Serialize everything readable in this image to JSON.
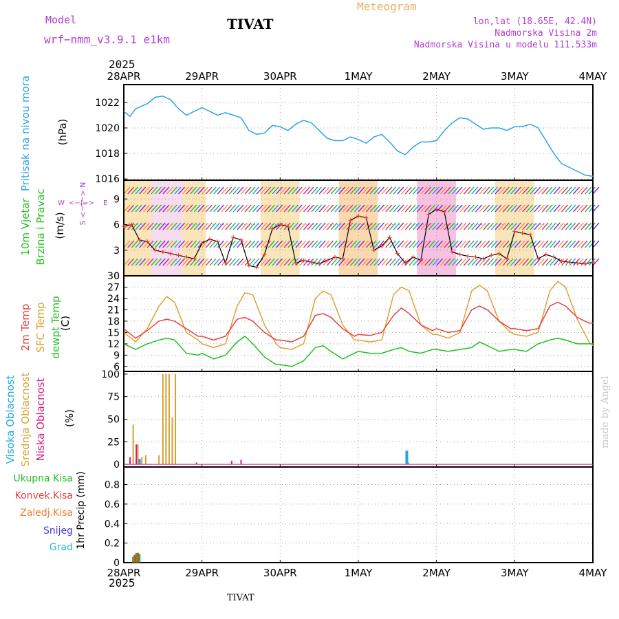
{
  "header": {
    "model_label": "Model",
    "model_name": "wrf−nmm_v3.9.1 e1km",
    "station": "TIVAT",
    "app_title": "Meteogram",
    "coords": "lon,lat (18.65E, 42.4N)",
    "elevation": "Nadmorska Visina 2m",
    "model_elevation": "Nadmorska Visina u modelu 111.533m",
    "watermark": "made by Angel",
    "footer_station": "TIVAT"
  },
  "colors": {
    "pressure": "#29a3e8",
    "wind_speed": "#000000",
    "wind_points": "#ff3030",
    "t2m": "#e84040",
    "sfc": "#e0a030",
    "dewpt": "#20c020",
    "high_cloud": "#20a8e0",
    "mid_cloud": "#d8a030",
    "low_cloud": "#d81880",
    "total_precip": "#20c020",
    "conv_precip": "#e84040",
    "frz_precip": "#f08030",
    "snow": "#4040e0",
    "hail": "#20c0c0",
    "label_purple": "#b040d0",
    "label_orange": "#e8b060"
  },
  "time_axis": {
    "year": "2025",
    "ticks": [
      "28APR",
      "29APR",
      "30APR",
      "1MAY",
      "2MAY",
      "3MAY",
      "4MAY"
    ]
  },
  "panels": [
    {
      "id": "pressure",
      "labels": [
        "Pritisak na nivou mora"
      ],
      "unit": "(hPa)",
      "ticks": [
        "1016",
        "1018",
        "1020",
        "1022"
      ]
    },
    {
      "id": "wind",
      "labels": [
        "10m Vjetar",
        "Brzina i Pravac"
      ],
      "unit": "(m/s)",
      "ticks": [
        "0",
        "3",
        "6",
        "9"
      ],
      "compass": {
        "n": "N",
        "s": "S",
        "e": "E",
        "w": "W",
        "arrow": "<−|−>"
      }
    },
    {
      "id": "temp",
      "labels": [
        "2m Temp",
        "SFC Temp",
        "dewpt Temp"
      ],
      "unit": "(C)",
      "ticks": [
        "6",
        "9",
        "12",
        "15",
        "18",
        "21",
        "24",
        "27",
        "30"
      ]
    },
    {
      "id": "cloud",
      "labels": [
        "Visoka Oblacnost",
        "Srednja Oblacnost",
        "Niska Oblacnost"
      ],
      "unit": "(%)",
      "ticks": [
        "0",
        "25",
        "50",
        "75",
        "100"
      ]
    },
    {
      "id": "precip",
      "labels": [
        "Ukupna Kisa",
        "Konvek.Kisa",
        "Zaledj.Kisa",
        "Snijeg",
        "Grad"
      ],
      "unit": "1hr Precip (mm)",
      "ticks": [
        "0",
        "0.2",
        "0.4",
        "0.6",
        "0.8"
      ]
    }
  ],
  "chart_data": [
    {
      "type": "line",
      "title": "Pritisak na nivou mora",
      "ylabel": "(hPa)",
      "x_unit": "days from 28APR 00UTC",
      "ylim": [
        1015.9,
        1023.4
      ],
      "grid": true,
      "series": [
        {
          "name": "Pritisak na nivou mora",
          "x": [
            0,
            0.08,
            0.15,
            0.3,
            0.4,
            0.5,
            0.6,
            0.7,
            0.8,
            0.9,
            1.0,
            1.1,
            1.2,
            1.3,
            1.4,
            1.5,
            1.6,
            1.7,
            1.8,
            1.9,
            2.0,
            2.1,
            2.2,
            2.3,
            2.4,
            2.5,
            2.6,
            2.7,
            2.8,
            2.9,
            3.0,
            3.1,
            3.2,
            3.3,
            3.4,
            3.5,
            3.6,
            3.7,
            3.8,
            3.9,
            4.0,
            4.1,
            4.2,
            4.3,
            4.4,
            4.5,
            4.6,
            4.7,
            4.8,
            4.9,
            5.0,
            5.1,
            5.2,
            5.3,
            5.4,
            5.5,
            5.6,
            5.7,
            5.8,
            5.9,
            6.0
          ],
          "y": [
            1021.3,
            1020.9,
            1021.5,
            1021.9,
            1022.4,
            1022.5,
            1022.2,
            1021.5,
            1021.0,
            1021.3,
            1021.6,
            1021.3,
            1021.0,
            1021.2,
            1021.0,
            1020.8,
            1019.8,
            1019.5,
            1019.6,
            1020.2,
            1020.1,
            1019.8,
            1020.3,
            1020.6,
            1020.4,
            1019.8,
            1019.2,
            1019.0,
            1019.0,
            1019.3,
            1019.1,
            1018.8,
            1019.3,
            1019.5,
            1018.9,
            1018.2,
            1017.9,
            1018.5,
            1018.9,
            1018.9,
            1019.0,
            1019.8,
            1020.4,
            1020.8,
            1020.7,
            1020.3,
            1019.9,
            1020.0,
            1020.0,
            1019.8,
            1020.1,
            1020.1,
            1020.3,
            1020.0,
            1019.0,
            1018.0,
            1017.2,
            1016.9,
            1016.6,
            1016.3,
            1016.2
          ]
        }
      ]
    },
    {
      "type": "line",
      "title": "10m Vjetar Brzina i Pravac",
      "ylabel": "(m/s)",
      "x_unit": "days from 28APR 00UTC",
      "ylim": [
        0,
        11.2
      ],
      "grid": true,
      "series": [
        {
          "name": "10m Vjetar",
          "x": [
            0,
            0.1,
            0.2,
            0.3,
            0.4,
            0.5,
            0.6,
            0.7,
            0.8,
            0.9,
            1.0,
            1.1,
            1.2,
            1.3,
            1.4,
            1.5,
            1.6,
            1.7,
            1.8,
            1.9,
            2.0,
            2.1,
            2.2,
            2.3,
            2.4,
            2.5,
            2.6,
            2.7,
            2.8,
            2.9,
            3.0,
            3.1,
            3.2,
            3.3,
            3.4,
            3.5,
            3.6,
            3.7,
            3.8,
            3.9,
            4.0,
            4.1,
            4.2,
            4.3,
            4.4,
            4.5,
            4.6,
            4.7,
            4.8,
            4.9,
            5.0,
            5.1,
            5.2,
            5.3,
            5.4,
            5.5,
            5.6,
            5.7,
            5.8,
            5.9,
            6.0
          ],
          "y": [
            5.8,
            6.0,
            4.2,
            4.0,
            3.0,
            2.8,
            2.6,
            2.4,
            2.2,
            2.0,
            3.8,
            4.3,
            4.0,
            1.5,
            4.5,
            4.2,
            1.2,
            1.0,
            2.5,
            5.5,
            6.0,
            5.8,
            1.5,
            1.8,
            1.6,
            1.4,
            1.8,
            2.2,
            2.0,
            6.5,
            7.0,
            6.8,
            3.0,
            3.5,
            4.5,
            2.6,
            1.5,
            2.2,
            1.8,
            7.2,
            7.8,
            7.5,
            2.8,
            2.5,
            2.3,
            2.2,
            2.0,
            2.4,
            2.6,
            2.0,
            5.2,
            5.0,
            4.8,
            2.0,
            2.5,
            2.2,
            1.7,
            1.6,
            1.5,
            1.4,
            1.6
          ]
        }
      ]
    },
    {
      "type": "line",
      "title": "2m Temp / SFC Temp / dewpt Temp",
      "ylabel": "(C)",
      "x_unit": "days from 28APR 00UTC",
      "ylim": [
        4.7,
        30
      ],
      "grid": true,
      "series": [
        {
          "name": "2m Temp",
          "x": [
            0,
            0.15,
            0.3,
            0.45,
            0.55,
            0.65,
            0.8,
            0.95,
            1.0,
            1.15,
            1.3,
            1.45,
            1.55,
            1.65,
            1.8,
            1.95,
            2.0,
            2.15,
            2.3,
            2.45,
            2.55,
            2.65,
            2.8,
            2.95,
            3.0,
            3.15,
            3.3,
            3.45,
            3.55,
            3.65,
            3.8,
            3.95,
            4.0,
            4.15,
            4.3,
            4.45,
            4.55,
            4.65,
            4.8,
            4.95,
            5.0,
            5.15,
            5.3,
            5.45,
            5.55,
            5.65,
            5.8,
            5.95,
            6.0
          ],
          "y": [
            16,
            13.5,
            15.5,
            18,
            18.5,
            18,
            16,
            14,
            14,
            13,
            14,
            18.5,
            19,
            18,
            15,
            13,
            13,
            12.5,
            14,
            19.5,
            20,
            19,
            16,
            14,
            14.5,
            14.2,
            15,
            19.5,
            21.5,
            20,
            17,
            15.5,
            16,
            15,
            15.5,
            21,
            22,
            21,
            18,
            16,
            16,
            15.5,
            16,
            22,
            23,
            22,
            19,
            17.5,
            17.5
          ]
        },
        {
          "name": "SFC Temp",
          "x": [
            0,
            0.15,
            0.3,
            0.45,
            0.55,
            0.65,
            0.8,
            0.95,
            1.0,
            1.15,
            1.3,
            1.45,
            1.55,
            1.65,
            1.8,
            1.95,
            2.0,
            2.15,
            2.3,
            2.45,
            2.55,
            2.65,
            2.8,
            2.95,
            3.0,
            3.15,
            3.3,
            3.45,
            3.55,
            3.65,
            3.8,
            3.95,
            4.0,
            4.15,
            4.3,
            4.45,
            4.55,
            4.65,
            4.8,
            4.95,
            5.0,
            5.15,
            5.3,
            5.45,
            5.55,
            5.65,
            5.8,
            5.95,
            6.0
          ],
          "y": [
            15,
            12.5,
            16,
            22,
            24.5,
            23,
            15,
            13,
            12,
            11,
            12,
            22,
            25.5,
            25,
            17,
            12,
            11,
            10.5,
            12,
            24,
            26,
            25,
            17,
            13,
            13,
            12.5,
            13,
            25,
            27,
            26,
            17,
            14.5,
            14.5,
            13.5,
            15,
            26,
            27.5,
            26,
            18,
            15,
            14.5,
            14,
            15,
            26,
            28.5,
            27,
            18.5,
            12.5,
            11.5
          ]
        },
        {
          "name": "dewpt Temp",
          "x": [
            0,
            0.15,
            0.3,
            0.45,
            0.55,
            0.65,
            0.8,
            0.95,
            1.0,
            1.15,
            1.3,
            1.45,
            1.55,
            1.65,
            1.8,
            1.95,
            2.0,
            2.15,
            2.3,
            2.45,
            2.55,
            2.65,
            2.8,
            2.95,
            3.0,
            3.15,
            3.3,
            3.45,
            3.55,
            3.65,
            3.8,
            3.95,
            4.0,
            4.15,
            4.3,
            4.45,
            4.55,
            4.65,
            4.8,
            4.95,
            5.0,
            5.15,
            5.3,
            5.45,
            5.55,
            5.65,
            5.8,
            5.95,
            6.0
          ],
          "y": [
            12,
            10.5,
            12,
            13,
            13.5,
            13,
            9.5,
            9,
            9.5,
            8,
            9,
            12.5,
            14,
            12,
            8.5,
            6.5,
            6.5,
            6,
            7.5,
            11,
            11.5,
            10,
            8,
            9.5,
            10,
            9.5,
            9.5,
            10.5,
            11,
            10,
            9.5,
            10.5,
            10.5,
            10,
            10.5,
            11,
            12.5,
            11.5,
            10,
            10.5,
            10.5,
            10,
            12,
            13,
            13.5,
            13,
            12,
            12,
            12
          ]
        }
      ]
    },
    {
      "type": "bar",
      "title": "Visoka / Srednja / Niska Oblacnost",
      "ylabel": "(%)",
      "x_unit": "days from 28APR 00UTC",
      "ylim": [
        -3,
        103
      ],
      "grid": true,
      "series": [
        {
          "name": "Visoka Oblacnost",
          "x": [
            0.2,
            3.62,
            3.63
          ],
          "values": [
            6,
            15,
            2
          ]
        },
        {
          "name": "Srednja Oblacnost",
          "x": [
            0.12,
            0.18,
            0.23,
            0.28,
            0.45,
            0.5,
            0.54,
            0.58,
            0.62,
            0.66
          ],
          "values": [
            44,
            22,
            8,
            10,
            10,
            100,
            100,
            100,
            52,
            100
          ]
        },
        {
          "name": "Niska Oblacnost",
          "x": [
            0.08,
            0.16,
            0.93,
            1.38,
            1.5
          ],
          "values": [
            8,
            22,
            2,
            4,
            5
          ]
        }
      ]
    },
    {
      "type": "bar",
      "title": "1hr Precip",
      "ylabel": "1hr Precip (mm)",
      "x_unit": "days from 28APR 00UTC",
      "ylim": [
        0,
        0.98
      ],
      "grid": true,
      "series": [
        {
          "name": "Ukupna Kisa",
          "x": [
            0.12,
            0.16,
            0.2
          ],
          "values": [
            0.06,
            0.1,
            0.09
          ]
        },
        {
          "name": "Konvek.Kisa",
          "x": [
            0.14,
            0.18
          ],
          "values": [
            0.08,
            0.1
          ]
        },
        {
          "name": "Zaledj.Kisa",
          "x": [],
          "values": []
        },
        {
          "name": "Snijeg",
          "x": [],
          "values": []
        },
        {
          "name": "Grad",
          "x": [],
          "values": []
        }
      ]
    }
  ]
}
